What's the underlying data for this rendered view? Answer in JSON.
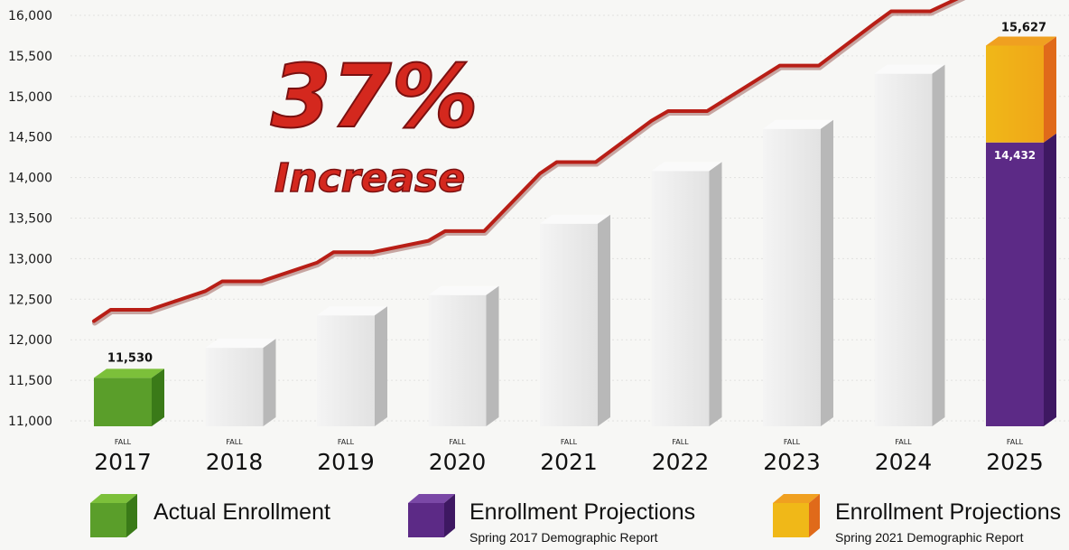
{
  "chart_data": {
    "type": "bar",
    "title": "",
    "headline": {
      "percent": "37%",
      "word": "Increase"
    },
    "categories": [
      {
        "prefix": "FALL",
        "year": "2017"
      },
      {
        "prefix": "FALL",
        "year": "2018"
      },
      {
        "prefix": "FALL",
        "year": "2019"
      },
      {
        "prefix": "FALL",
        "year": "2020"
      },
      {
        "prefix": "FALL",
        "year": "2021"
      },
      {
        "prefix": "FALL",
        "year": "2022"
      },
      {
        "prefix": "FALL",
        "year": "2023"
      },
      {
        "prefix": "FALL",
        "year": "2024"
      },
      {
        "prefix": "FALL",
        "year": "2025"
      }
    ],
    "ylim": [
      11000,
      16000
    ],
    "yticks": [
      "11,000",
      "11,500",
      "12,000",
      "12,500",
      "13,000",
      "13,500",
      "14,000",
      "14,500",
      "15,000",
      "15,500",
      "16,000"
    ],
    "ytick_values": [
      11000,
      11500,
      12000,
      12500,
      13000,
      13500,
      14000,
      14500,
      15000,
      15500,
      16000
    ],
    "bars": [
      {
        "value": 11530,
        "kind": "actual",
        "label": "11,530"
      },
      {
        "value": 11900,
        "kind": "projection"
      },
      {
        "value": 12300,
        "kind": "projection"
      },
      {
        "value": 12550,
        "kind": "projection"
      },
      {
        "value": 13430,
        "kind": "projection"
      },
      {
        "value": 14080,
        "kind": "projection"
      },
      {
        "value": 14600,
        "kind": "projection"
      },
      {
        "value": 15280,
        "kind": "projection"
      }
    ],
    "last_bar": {
      "purple_value": 14432,
      "purple_label": "14,432",
      "total_value": 15627,
      "total_label": "15,627"
    },
    "trend_line": {
      "points": [
        [
          0,
          12230
        ],
        [
          0.15,
          12370
        ],
        [
          0.5,
          12370
        ],
        [
          1.0,
          12600
        ],
        [
          1.15,
          12720
        ],
        [
          1.5,
          12720
        ],
        [
          2.0,
          12950
        ],
        [
          2.15,
          13080
        ],
        [
          2.5,
          13080
        ],
        [
          3.0,
          13220
        ],
        [
          3.15,
          13340
        ],
        [
          3.5,
          13340
        ],
        [
          4.0,
          14050
        ],
        [
          4.15,
          14190
        ],
        [
          4.5,
          14190
        ],
        [
          5.0,
          14700
        ],
        [
          5.15,
          14820
        ],
        [
          5.5,
          14820
        ],
        [
          6.0,
          15250
        ],
        [
          6.15,
          15380
        ],
        [
          6.5,
          15380
        ],
        [
          7.0,
          15900
        ],
        [
          7.15,
          16050
        ],
        [
          7.5,
          16050
        ],
        [
          8.2,
          16500
        ]
      ]
    },
    "colors": {
      "actual": "#5a9e2a",
      "purple": "#5c2a86",
      "yellow": "#f0b818",
      "orange": "#e06a1a",
      "projection_bar": "#ececec",
      "trend_line": "#b81e16"
    },
    "legend": [
      {
        "title": "Actual Enrollment",
        "subtitle": "",
        "color": "green"
      },
      {
        "title": "Enrollment Projections",
        "subtitle": "Spring 2017 Demographic Report",
        "color": "purple"
      },
      {
        "title": "Enrollment Projections",
        "subtitle": "Spring 2021 Demographic Report",
        "color": "yellow"
      }
    ]
  }
}
